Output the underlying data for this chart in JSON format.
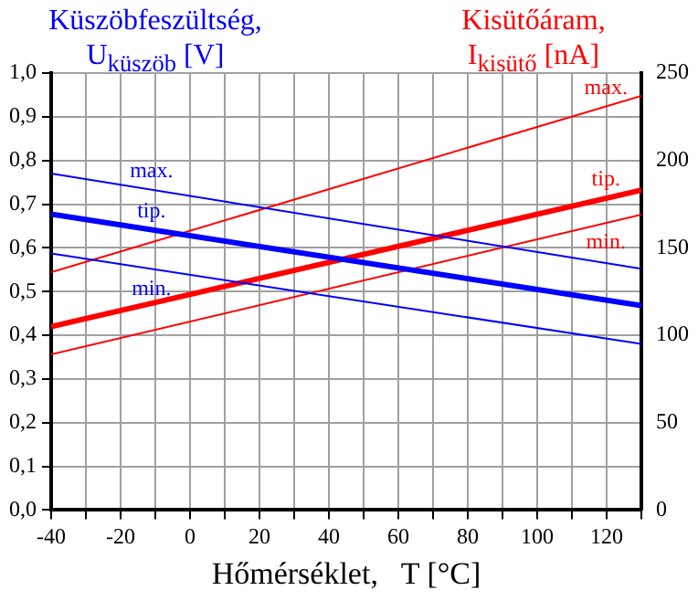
{
  "chart_data": {
    "type": "line",
    "xlabel": "Hőmérséklet,   T [°C]",
    "ylabel": "Küszöbfeszültség, U$_{küszöb}$ [V]",
    "y2label": "Kisütőáram, I$_{kisütő}$ [nA]",
    "x": [
      -40,
      130
    ],
    "series": [
      {
        "name": "max.",
        "color": "#0000ff",
        "values": [
          0.77,
          0.552
        ]
      },
      {
        "name": "tip.",
        "color": "#0000ff",
        "values": [
          0.677,
          0.468
        ]
      },
      {
        "name": "min.",
        "color": "#0000ff",
        "values": [
          0.587,
          0.38
        ]
      },
      {
        "name": "max.",
        "color": "#ff0000",
        "axis": "y2",
        "values": [
          136,
          237
        ]
      },
      {
        "name": "tip.",
        "color": "#ff0000",
        "axis": "y2",
        "values": [
          105,
          183
        ]
      },
      {
        "name": "min.",
        "color": "#ff0000",
        "axis": "y2",
        "values": [
          89,
          169
        ]
      }
    ],
    "xlim": [
      -40,
      130
    ],
    "xticks": [
      -40,
      {
        "value": -30,
        "label": null
      },
      -20,
      {
        "value": -10,
        "label": null
      },
      0,
      {
        "value": 10,
        "label": null
      },
      20,
      {
        "value": 30,
        "label": null
      },
      40,
      {
        "value": 50,
        "label": null
      },
      60,
      {
        "value": 70,
        "label": null
      },
      80,
      {
        "value": 90,
        "label": null
      },
      100,
      {
        "value": 110,
        "label": null
      },
      120,
      {
        "value": 130,
        "label": null
      }
    ],
    "ylim": [
      0,
      1
    ],
    "yticks": [
      {
        "value": 0,
        "label": "0,0"
      },
      {
        "value": 0.1,
        "label": "0,1"
      },
      {
        "value": 0.2,
        "label": "0,2"
      },
      {
        "value": 0.3,
        "label": "0,3"
      },
      {
        "value": 0.4,
        "label": "0,4"
      },
      {
        "value": 0.5,
        "label": "0,5"
      },
      {
        "value": 0.6,
        "label": "0,6"
      },
      {
        "value": 0.7,
        "label": "0,7"
      },
      {
        "value": 0.8,
        "label": "0,8"
      },
      {
        "value": 0.9,
        "label": "0,9"
      },
      {
        "value": 1,
        "label": "1,0"
      }
    ],
    "y2lim": [
      0,
      250
    ],
    "y2ticks": [
      0,
      50,
      100,
      150,
      200,
      250
    ],
    "grid": true,
    "legend": false,
    "marker": "none",
    "line_style": "solid"
  }
}
